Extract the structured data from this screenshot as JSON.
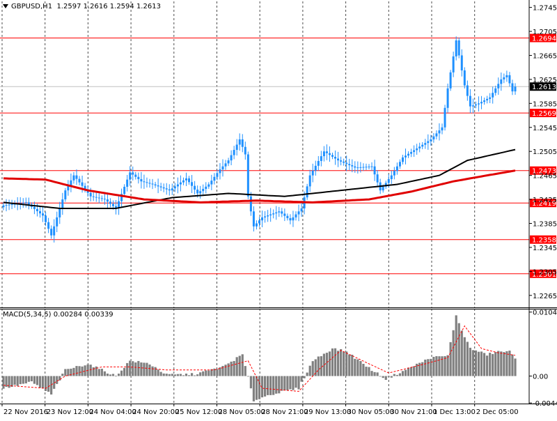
{
  "symbol_header": {
    "symbol": "GBPUSD,H1",
    "ohlc": "1.2597 1.2616 1.2594 1.2613"
  },
  "macd_header": {
    "label": "MACD(5,34,5)",
    "values": "0.00284 0.00339"
  },
  "colors": {
    "background": "#ffffff",
    "candle": "#1e90ff",
    "level_line": "#ff0000",
    "ma_slow": "#000000",
    "ma_fast": "#e00000",
    "macd_hist": "#808080",
    "macd_signal": "#ff0000",
    "grid": "#000000",
    "current_price_bg": "#000000"
  },
  "price_axis": {
    "min": 1.2245,
    "max": 1.2755,
    "ticks": [
      "1.2745",
      "1.2705",
      "1.2665",
      "1.2625",
      "1.2585",
      "1.2545",
      "1.2505",
      "1.2465",
      "1.2425",
      "1.2385",
      "1.2345",
      "1.2305",
      "1.2265"
    ]
  },
  "levels": [
    {
      "label": "1.2694",
      "value": 1.2694
    },
    {
      "label": "1.2569",
      "value": 1.2569
    },
    {
      "label": "1.2473",
      "value": 1.2473
    },
    {
      "label": "1.2419",
      "value": 1.2419
    },
    {
      "label": "1.2358",
      "value": 1.2358
    },
    {
      "label": "1.2301",
      "value": 1.2301
    }
  ],
  "current_price": {
    "label": "1.2613",
    "value": 1.2613
  },
  "macd_axis": {
    "min": -0.0045,
    "max": 0.011,
    "ticks": [
      {
        "label": "0.01046",
        "value": 0.01046
      },
      {
        "label": "0.00",
        "value": 0.0
      },
      {
        "label": "-0.0044",
        "value": -0.0044
      }
    ]
  },
  "time_axis": {
    "labels": [
      "22 Nov 2016",
      "23 Nov 12:00",
      "24 Nov 04:00",
      "24 Nov 20:00",
      "25 Nov 12:00",
      "28 Nov 05:00",
      "28 Nov 21:00",
      "29 Nov 13:00",
      "30 Nov 05:00",
      "30 Nov 21:00",
      "1 Dec 13:00",
      "2 Dec 05:00"
    ]
  },
  "chart_data": {
    "type": "candlestick",
    "symbol": "GBPUSD",
    "timeframe": "H1",
    "bar_count": 183,
    "anchors": {
      "close": [
        [
          0,
          1.2415
        ],
        [
          8,
          1.242
        ],
        [
          14,
          1.2398
        ],
        [
          17,
          1.2365
        ],
        [
          22,
          1.244
        ],
        [
          25,
          1.2465
        ],
        [
          31,
          1.243
        ],
        [
          36,
          1.2425
        ],
        [
          40,
          1.241
        ],
        [
          45,
          1.247
        ],
        [
          49,
          1.2455
        ],
        [
          53,
          1.245
        ],
        [
          59,
          1.244
        ],
        [
          65,
          1.246
        ],
        [
          69,
          1.2435
        ],
        [
          73,
          1.245
        ],
        [
          77,
          1.2475
        ],
        [
          80,
          1.249
        ],
        [
          84,
          1.2525
        ],
        [
          86,
          1.25
        ],
        [
          87,
          1.243
        ],
        [
          89,
          1.238
        ],
        [
          92,
          1.2395
        ],
        [
          98,
          1.2405
        ],
        [
          102,
          1.239
        ],
        [
          106,
          1.241
        ],
        [
          109,
          1.2465
        ],
        [
          114,
          1.2505
        ],
        [
          119,
          1.249
        ],
        [
          125,
          1.2478
        ],
        [
          131,
          1.248
        ],
        [
          134,
          1.244
        ],
        [
          138,
          1.2465
        ],
        [
          142,
          1.2495
        ],
        [
          147,
          1.251
        ],
        [
          152,
          1.2525
        ],
        [
          156,
          1.2545
        ],
        [
          158,
          1.261
        ],
        [
          161,
          1.269
        ],
        [
          164,
          1.2615
        ],
        [
          166,
          1.258
        ],
        [
          169,
          1.2585
        ],
        [
          173,
          1.2595
        ],
        [
          177,
          1.2625
        ],
        [
          179,
          1.2632
        ],
        [
          181,
          1.2605
        ],
        [
          182,
          1.2613
        ]
      ],
      "ma_slow": [
        [
          0,
          1.242
        ],
        [
          20,
          1.241
        ],
        [
          40,
          1.241
        ],
        [
          60,
          1.2428
        ],
        [
          80,
          1.2435
        ],
        [
          100,
          1.243
        ],
        [
          120,
          1.244
        ],
        [
          140,
          1.245
        ],
        [
          155,
          1.2465
        ],
        [
          165,
          1.249
        ],
        [
          182,
          1.2508
        ]
      ],
      "ma_fast": [
        [
          0,
          1.246
        ],
        [
          15,
          1.2458
        ],
        [
          30,
          1.244
        ],
        [
          50,
          1.2425
        ],
        [
          70,
          1.242
        ],
        [
          90,
          1.2423
        ],
        [
          110,
          1.242
        ],
        [
          130,
          1.2425
        ],
        [
          145,
          1.2438
        ],
        [
          160,
          1.2455
        ],
        [
          172,
          1.2465
        ],
        [
          182,
          1.2473
        ]
      ],
      "macd_hist": [
        [
          0,
          -0.002
        ],
        [
          10,
          -0.001
        ],
        [
          17,
          -0.003
        ],
        [
          22,
          0.001
        ],
        [
          30,
          0.002
        ],
        [
          40,
          0.0
        ],
        [
          45,
          0.0025
        ],
        [
          52,
          0.002
        ],
        [
          58,
          0.0002
        ],
        [
          68,
          0.0003
        ],
        [
          78,
          0.0015
        ],
        [
          85,
          0.0035
        ],
        [
          89,
          -0.004
        ],
        [
          95,
          -0.003
        ],
        [
          105,
          -0.002
        ],
        [
          110,
          0.0025
        ],
        [
          117,
          0.0045
        ],
        [
          122,
          0.004
        ],
        [
          131,
          0.001
        ],
        [
          136,
          -0.0005
        ],
        [
          142,
          0.0008
        ],
        [
          152,
          0.003
        ],
        [
          158,
          0.0033
        ],
        [
          161,
          0.0098
        ],
        [
          163,
          0.0075
        ],
        [
          166,
          0.0045
        ],
        [
          172,
          0.0035
        ],
        [
          176,
          0.004
        ],
        [
          180,
          0.004
        ],
        [
          182,
          0.0028
        ]
      ],
      "macd_signal": [
        [
          0,
          -0.0015
        ],
        [
          15,
          -0.002
        ],
        [
          22,
          0.0
        ],
        [
          35,
          0.0015
        ],
        [
          45,
          0.0015
        ],
        [
          58,
          0.001
        ],
        [
          75,
          0.001
        ],
        [
          87,
          0.0025
        ],
        [
          92,
          -0.002
        ],
        [
          105,
          -0.0025
        ],
        [
          112,
          0.001
        ],
        [
          120,
          0.0042
        ],
        [
          130,
          0.002
        ],
        [
          137,
          0.0005
        ],
        [
          150,
          0.002
        ],
        [
          158,
          0.003
        ],
        [
          164,
          0.0082
        ],
        [
          170,
          0.0045
        ],
        [
          176,
          0.0038
        ],
        [
          182,
          0.0034
        ]
      ]
    }
  }
}
